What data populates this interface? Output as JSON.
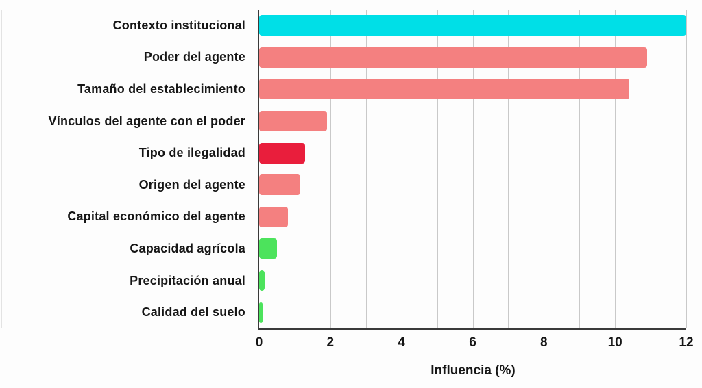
{
  "chart_data": {
    "type": "bar",
    "orientation": "horizontal",
    "title": "",
    "xlabel": "Influencia (%)",
    "ylabel": "",
    "xlim": [
      0,
      12
    ],
    "x_major_ticks": [
      0,
      2,
      4,
      6,
      8,
      10,
      12
    ],
    "x_minor_step": 1,
    "grid": "vertical, minor step 1, light gray",
    "legend": "none",
    "categories": [
      "Contexto institucional",
      "Poder del agente",
      "Tamaño del establecimiento",
      "Vínculos del agente con el poder",
      "Tipo de ilegalidad",
      "Origen del agente",
      "Capital económico del agente",
      "Capacidad agrícola",
      "Precipitación anual",
      "Calidad del suelo"
    ],
    "values": [
      12.0,
      10.9,
      10.4,
      1.9,
      1.3,
      1.15,
      0.8,
      0.5,
      0.15,
      0.1
    ],
    "bar_colors": [
      "#00dfe7",
      "#f48080",
      "#f48080",
      "#f48080",
      "#e91e3c",
      "#f48080",
      "#f48080",
      "#4ce35c",
      "#4ce35c",
      "#4ce35c"
    ]
  },
  "colors": {
    "background": "#fdfdfd",
    "gridline": "#c9c9c9",
    "axis": "#3a3a3a",
    "text": "#161616",
    "cyan_bar": "#00dfe7",
    "salmon_bar": "#f48080",
    "red_bar": "#e91e3c",
    "green_bar": "#4ce35c"
  }
}
